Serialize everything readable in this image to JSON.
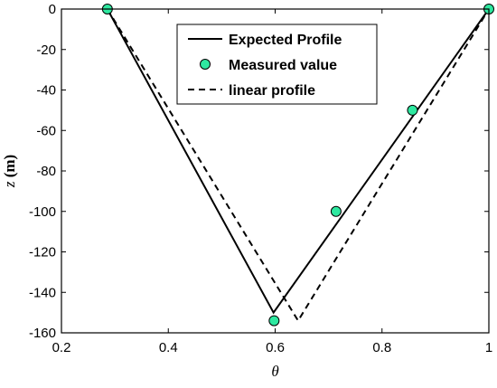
{
  "chart_data": {
    "type": "line",
    "xlabel": "θ",
    "ylabel_var": "z",
    "ylabel_unit": " (m)",
    "xlim": [
      0.2,
      1.0
    ],
    "ylim": [
      -160,
      0
    ],
    "xticks": [
      0.2,
      0.4,
      0.6,
      0.8,
      1.0
    ],
    "xtick_labels": [
      "0.2",
      "0.4",
      "0.6",
      "0.8",
      "1"
    ],
    "yticks": [
      0,
      -20,
      -40,
      -60,
      -80,
      -100,
      -120,
      -140,
      -160
    ],
    "ytick_labels": [
      "0",
      "-20",
      "-40",
      "-60",
      "-80",
      "-100",
      "-120",
      "-140",
      "-160"
    ],
    "grid": false,
    "legend_position": "top-center",
    "series": [
      {
        "name": "Expected Profile",
        "style": "solid",
        "color": "#000000",
        "x": [
          0.286,
          0.597,
          1.0
        ],
        "y": [
          0,
          -150,
          0
        ]
      },
      {
        "name": "Measured value",
        "style": "marker",
        "color": "#2ee8a0",
        "x": [
          0.286,
          0.598,
          0.714,
          0.857,
          1.0
        ],
        "y": [
          0,
          -154,
          -100,
          -50,
          0
        ]
      },
      {
        "name": "linear profile",
        "style": "dashed",
        "color": "#000000",
        "x": [
          0.286,
          0.643,
          1.0
        ],
        "y": [
          0,
          -154,
          0
        ]
      }
    ]
  }
}
